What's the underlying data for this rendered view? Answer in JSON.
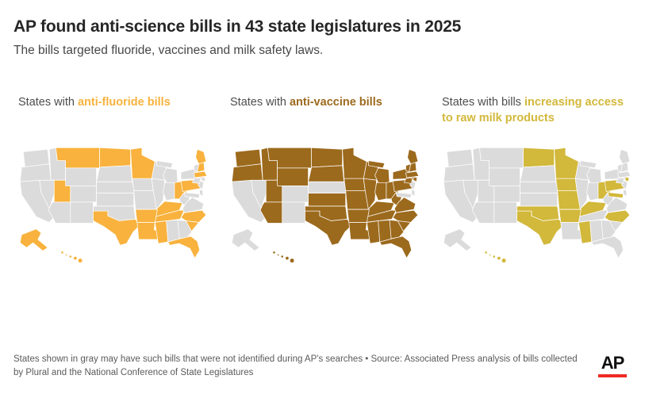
{
  "header": {
    "title": "AP found anti-science bills in 43 state legislatures in 2025",
    "subtitle": "The bills targeted fluoride, vaccines and milk safety laws."
  },
  "chart_data": {
    "type": "choropleth",
    "unit": "US states",
    "default_state_color": "#dbdbdb",
    "state_border_color": "#ffffff",
    "maps": [
      {
        "id": "anti-fluoride",
        "label_prefix": "States with ",
        "label_highlight": "anti-fluoride bills",
        "color": "#f8b23d",
        "highlighted_states": [
          "AK",
          "HI",
          "MT",
          "ND",
          "MN",
          "UT",
          "TX",
          "AR",
          "LA",
          "MS",
          "KY",
          "TN",
          "OH",
          "PA",
          "NC",
          "SC",
          "FL",
          "ME",
          "NH",
          "MA"
        ]
      },
      {
        "id": "anti-vaccine",
        "label_prefix": "States with ",
        "label_highlight": "anti-vaccine bills",
        "color": "#9c6a1d",
        "highlighted_states": [
          "WA",
          "OR",
          "ID",
          "MT",
          "WY",
          "UT",
          "AZ",
          "ND",
          "SD",
          "KS",
          "OK",
          "TX",
          "MN",
          "IA",
          "MO",
          "AR",
          "LA",
          "WI",
          "IL",
          "MI",
          "IN",
          "OH",
          "KY",
          "TN",
          "MS",
          "AL",
          "GA",
          "FL",
          "SC",
          "NC",
          "VA",
          "WV",
          "PA",
          "NY",
          "VT",
          "NH",
          "ME",
          "MA",
          "CT",
          "RI",
          "HI"
        ]
      },
      {
        "id": "raw-milk",
        "label_prefix": "States with bills ",
        "label_highlight": "increasing access to raw milk products",
        "color": "#d2b83b",
        "highlighted_states": [
          "ND",
          "MN",
          "IA",
          "MO",
          "OK",
          "AR",
          "TX",
          "MS",
          "KY",
          "OH",
          "PA",
          "MD",
          "RI",
          "NC",
          "HI"
        ]
      }
    ]
  },
  "footer": {
    "note": "States shown in gray may have such bills that were not identified during AP's searches • Source: Associated Press analysis of bills collected by Plural and the National Conference of State Legislatures",
    "logo_text": "AP"
  }
}
